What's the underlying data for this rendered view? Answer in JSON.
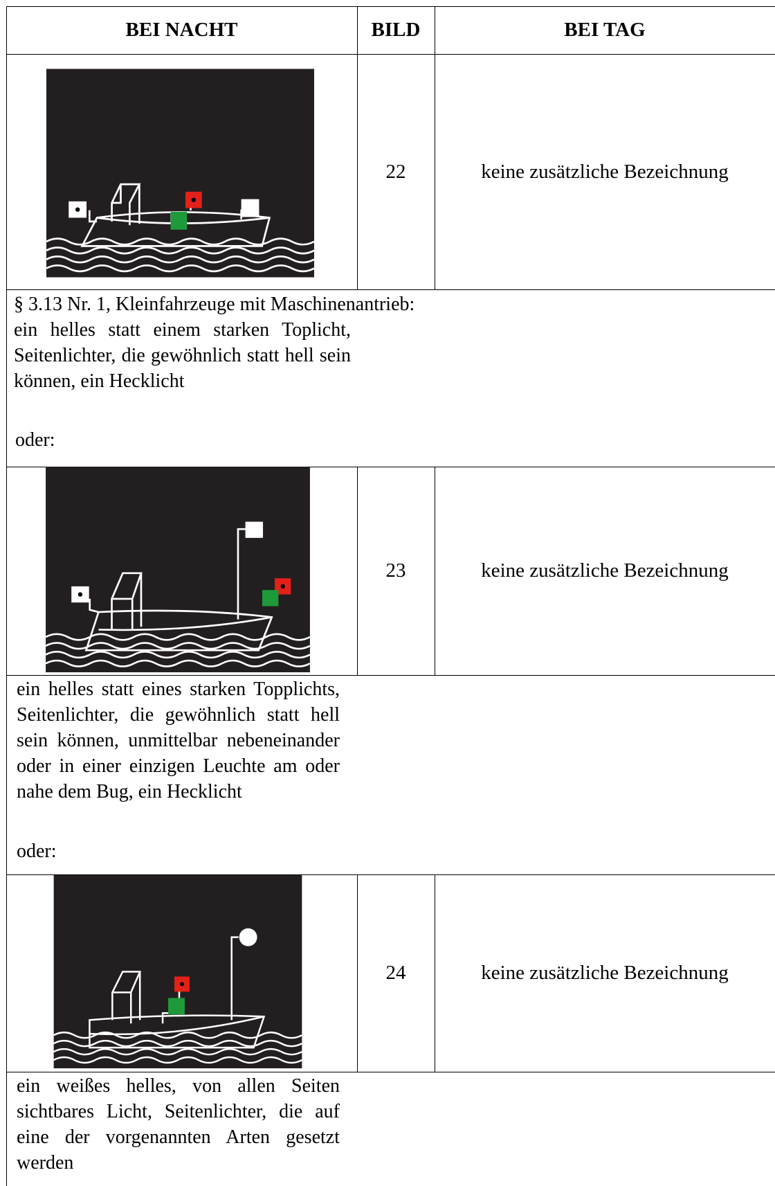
{
  "table": {
    "headers": [
      "BEI NACHT",
      "BILD",
      "BEI TAG"
    ],
    "rows": [
      {
        "bild": "22",
        "bei_tag": "keine zusätzliche Bezeichnung"
      },
      {
        "bild": "23",
        "bei_tag": "keine zusätzliche Bezeichnung"
      },
      {
        "bild": "24",
        "bei_tag": "keine zusätzliche Bezeichnung"
      }
    ],
    "notes": [
      {
        "heading": "§ 3.13 Nr. 1, Kleinfahrzeuge mit Maschinenantrieb:",
        "text": "ein helles statt einem starken Toplicht, Seitenlichter, die gewöhnlich statt hell sein können, ein Hecklicht",
        "oder": "oder:"
      },
      {
        "text": "ein helles statt eines starken Topplichts, Seitenlichter, die gewöhnlich statt hell sein können, unmittelbar nebeneinander oder in einer einzigen Leuchte am oder nahe dem Bug, ein Hecklicht",
        "oder": "oder:"
      },
      {
        "text": "ein weißes helles, von allen Seiten sichtbares Licht, Seitenlichter, die auf eine der vorgenannten Arten gesetzt werden"
      }
    ]
  }
}
